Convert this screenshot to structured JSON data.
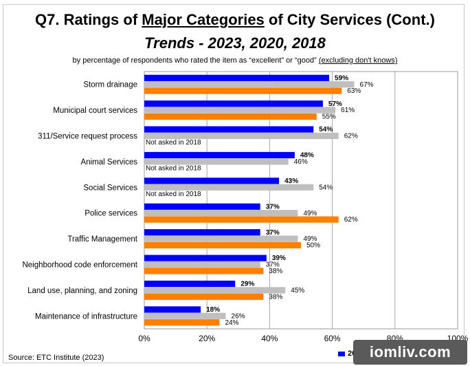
{
  "header": {
    "title_prefix": "Q7. Ratings of ",
    "title_underlined": "Major Categories",
    "title_suffix": " of City Services (Cont.)",
    "title_line2": "Trends - 2023, 2020, 2018",
    "subtitle_main": "by percentage of respondents who rated the item as “excellent” or “good” ",
    "subtitle_underlined": "(excluding don't knows)"
  },
  "source": "Source:  ETC Institute (2023)",
  "legend": {
    "visible_label": "202",
    "color": "#0000ff"
  },
  "watermark": "iomliv.com",
  "chart_data": {
    "type": "bar",
    "orientation": "horizontal",
    "categories": [
      "Storm drainage",
      "Municipal court services",
      "311/Service request process",
      "Animal Services",
      "Social Services",
      "Police services",
      "Traffic Management",
      "Neighborhood code enforcement",
      "Land use, planning, and zoning",
      "Maintenance of infrastructure"
    ],
    "series": [
      {
        "color": "#0000ff",
        "values": [
          59,
          57,
          54,
          48,
          43,
          37,
          37,
          39,
          29,
          18
        ],
        "labels": [
          "59%",
          "57%",
          "54%",
          "48%",
          "43%",
          "37%",
          "37%",
          "39%",
          "29%",
          "18%"
        ],
        "bold": true
      },
      {
        "color": "#bfbfbf",
        "values": [
          67,
          61,
          62,
          46,
          54,
          49,
          49,
          37,
          45,
          26
        ],
        "labels": [
          "67%",
          "61%",
          "62%",
          "46%",
          "54%",
          "49%",
          "49%",
          "37%",
          "45%",
          "26%"
        ],
        "bold": false
      },
      {
        "color": "#ff7f00",
        "values": [
          63,
          55,
          null,
          null,
          null,
          62,
          50,
          38,
          38,
          24
        ],
        "labels": [
          "63%",
          "55%",
          "Not asked in 2018",
          "Not asked in 2018",
          "Not asked in 2018",
          "62%",
          "50%",
          "38%",
          "38%",
          "24%"
        ],
        "bold": false
      }
    ],
    "xlim": [
      0,
      100
    ],
    "x_ticks": [
      0,
      20,
      40,
      60,
      80,
      100
    ],
    "x_tick_labels": [
      "0%",
      "20%",
      "40%",
      "60%",
      "80%",
      "100%"
    ],
    "grid": true
  }
}
